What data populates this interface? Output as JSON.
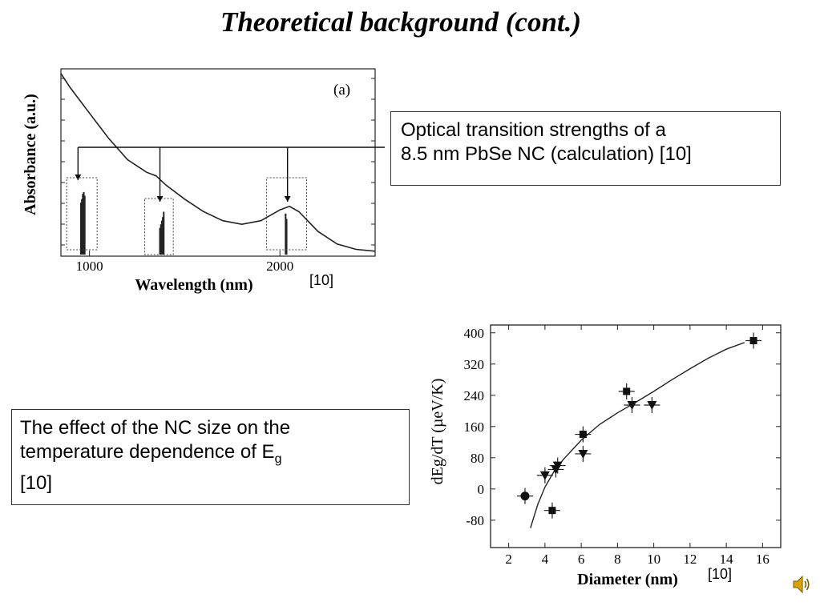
{
  "slide": {
    "title": "Theoretical background (cont.)",
    "box1": {
      "line1": "Optical transition strengths of a",
      "line2": "8.5 nm PbSe NC (calculation) [10]"
    },
    "box2": {
      "line1": "The effect of the NC size on the",
      "line2_prefix": "temperature dependence of E",
      "line2_sub": "g",
      "line3": "[10]"
    },
    "ref1": "[10]",
    "ref2": "[10]"
  },
  "chart_data": [
    {
      "type": "line",
      "panel_label": "(a)",
      "xlabel": "Wavelength (nm)",
      "ylabel": "Absorbance (a.u.)",
      "xticks": [
        "1000",
        "2000"
      ],
      "xlim": [
        850,
        2500
      ],
      "curve": {
        "x": [
          850,
          900,
          1000,
          1100,
          1200,
          1300,
          1350,
          1400,
          1500,
          1600,
          1700,
          1800,
          1900,
          2000,
          2050,
          2100,
          2200,
          2300,
          2400,
          2500
        ],
        "y": [
          1.0,
          0.92,
          0.78,
          0.64,
          0.52,
          0.45,
          0.43,
          0.38,
          0.3,
          0.23,
          0.18,
          0.16,
          0.18,
          0.24,
          0.26,
          0.23,
          0.12,
          0.05,
          0.02,
          0.01
        ]
      },
      "transitions": [
        {
          "x": [
            955,
            960,
            965,
            970,
            975
          ],
          "y": [
            0.28,
            0.3,
            0.33,
            0.34,
            0.32
          ]
        },
        {
          "x": [
            1370,
            1375,
            1380,
            1385,
            1390
          ],
          "y": [
            0.14,
            0.16,
            0.18,
            0.2,
            0.23
          ]
        },
        {
          "x": [
            2030,
            2035
          ],
          "y": [
            0.22,
            0.19
          ]
        }
      ]
    },
    {
      "type": "scatter",
      "xlabel": "Diameter (nm)",
      "ylabel": "dEg/dT (µeV/K)",
      "xticks": [
        "2",
        "4",
        "6",
        "8",
        "10",
        "12",
        "14",
        "16"
      ],
      "yticks": [
        "400",
        "320",
        "240",
        "160",
        "80",
        "0",
        "-80"
      ],
      "xlim": [
        1,
        17
      ],
      "ylim": [
        -150,
        420
      ],
      "series": [
        {
          "marker": "circle",
          "x": [
            2.9
          ],
          "y": [
            -18
          ]
        },
        {
          "marker": "square",
          "x": [
            4.4,
            6.1,
            8.5,
            15.5
          ],
          "y": [
            -55,
            140,
            250,
            380
          ]
        },
        {
          "marker": "triangle-down",
          "x": [
            4.0,
            4.6,
            4.7,
            6.1,
            8.8,
            9.9
          ],
          "y": [
            35,
            50,
            60,
            90,
            215,
            215
          ]
        }
      ],
      "fit_curve": {
        "x": [
          3.2,
          3.6,
          4.0,
          4.5,
          5.0,
          6.0,
          7.0,
          8.0,
          9.0,
          10.0,
          11.0,
          12.0,
          13.0,
          14.0,
          15.0
        ],
        "y": [
          -100,
          -40,
          5,
          45,
          75,
          125,
          165,
          195,
          222,
          250,
          280,
          308,
          335,
          358,
          375
        ]
      }
    }
  ]
}
